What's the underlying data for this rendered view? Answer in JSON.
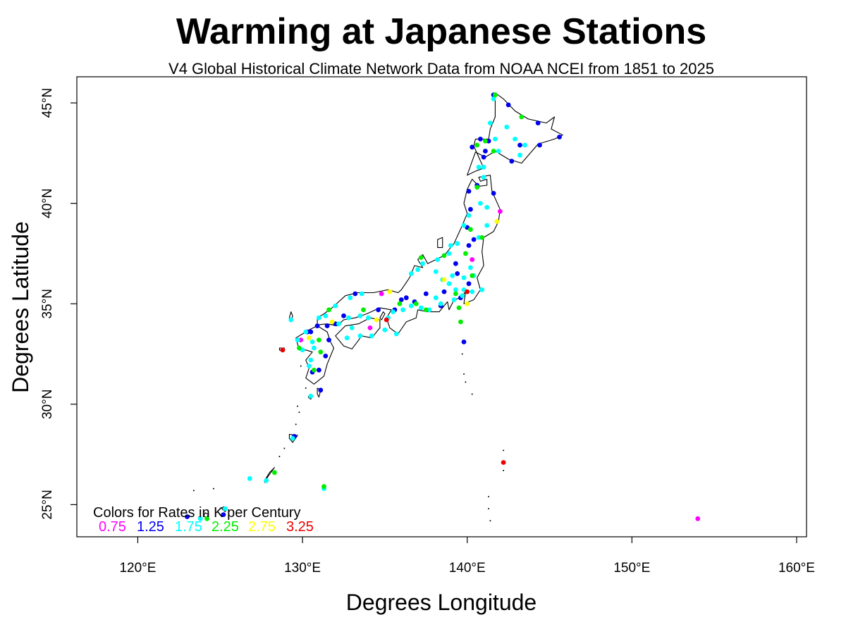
{
  "chart_data": {
    "type": "scatter",
    "title": "Warming at Japanese Stations",
    "subtitle": "V4 Global Historical Climate Network Data from NOAA NCEI from 1851 to 2025",
    "xlabel": "Degrees Longitude",
    "ylabel": "Degrees Latitude",
    "xlim": [
      116.3,
      160.6
    ],
    "ylim": [
      23.4,
      46.3
    ],
    "x_ticks": [
      120,
      130,
      140,
      150,
      160
    ],
    "x_tick_labels": [
      "120°E",
      "130°E",
      "140°E",
      "150°E",
      "160°E"
    ],
    "y_ticks": [
      25,
      30,
      35,
      40,
      45
    ],
    "y_tick_labels": [
      "25°N",
      "30°N",
      "35°N",
      "40°N",
      "45°N"
    ],
    "grid": false,
    "legend": {
      "title": "Colors for Rates in K per Century",
      "placement": "bottom-left",
      "entries": [
        {
          "label": "0.75",
          "color": "#ff00ff"
        },
        {
          "label": "1.25",
          "color": "#0000ee"
        },
        {
          "label": "1.75",
          "color": "#00ffff"
        },
        {
          "label": "2.25",
          "color": "#00ee00"
        },
        {
          "label": "2.75",
          "color": "#ffff00"
        },
        {
          "label": "3.25",
          "color": "#ee0000"
        }
      ]
    },
    "series": [
      {
        "name": "0.75",
        "color": "#ff00ff",
        "points": [
          [
            142.0,
            39.6
          ],
          [
            140.3,
            37.2
          ],
          [
            134.8,
            35.5
          ],
          [
            134.1,
            33.8
          ],
          [
            154.0,
            24.3
          ],
          [
            129.9,
            33.2
          ]
        ]
      },
      {
        "name": "1.25",
        "color": "#0000ee",
        "points": [
          [
            141.6,
            45.4
          ],
          [
            142.5,
            44.9
          ],
          [
            144.3,
            44.0
          ],
          [
            140.8,
            43.2
          ],
          [
            141.3,
            43.1
          ],
          [
            140.3,
            42.8
          ],
          [
            141.1,
            42.6
          ],
          [
            141.0,
            42.3
          ],
          [
            143.2,
            42.9
          ],
          [
            144.4,
            42.9
          ],
          [
            142.7,
            42.1
          ],
          [
            145.6,
            43.3
          ],
          [
            140.1,
            40.6
          ],
          [
            140.2,
            39.7
          ],
          [
            140.0,
            38.8
          ],
          [
            140.4,
            38.2
          ],
          [
            139.3,
            37.0
          ],
          [
            139.6,
            35.3
          ],
          [
            140.1,
            36.0
          ],
          [
            140.1,
            37.9
          ],
          [
            139.4,
            36.5
          ],
          [
            138.6,
            35.6
          ],
          [
            138.4,
            34.9
          ],
          [
            137.5,
            35.5
          ],
          [
            136.8,
            35.1
          ],
          [
            136.3,
            35.3
          ],
          [
            136.0,
            35.2
          ],
          [
            135.6,
            34.7
          ],
          [
            134.6,
            34.7
          ],
          [
            133.2,
            35.5
          ],
          [
            132.5,
            34.4
          ],
          [
            132.0,
            34.0
          ],
          [
            131.5,
            33.9
          ],
          [
            130.9,
            33.9
          ],
          [
            130.5,
            33.6
          ],
          [
            131.6,
            33.2
          ],
          [
            131.4,
            32.4
          ],
          [
            131.0,
            31.7
          ],
          [
            130.6,
            31.6
          ],
          [
            131.1,
            30.7
          ],
          [
            129.5,
            28.4
          ],
          [
            123.0,
            24.4
          ],
          [
            125.2,
            24.5
          ],
          [
            139.8,
            33.1
          ],
          [
            140.6,
            40.9
          ],
          [
            141.6,
            40.5
          ],
          [
            130.3,
            33.6
          ]
        ]
      },
      {
        "name": "1.75",
        "color": "#00ffff",
        "points": [
          [
            141.4,
            44.0
          ],
          [
            142.4,
            43.8
          ],
          [
            142.9,
            43.2
          ],
          [
            143.5,
            42.9
          ],
          [
            141.7,
            43.2
          ],
          [
            141.9,
            42.6
          ],
          [
            143.2,
            42.4
          ],
          [
            140.7,
            41.8
          ],
          [
            141.0,
            41.3
          ],
          [
            140.8,
            40.0
          ],
          [
            141.2,
            39.8
          ],
          [
            141.2,
            38.9
          ],
          [
            140.7,
            38.3
          ],
          [
            139.8,
            38.9
          ],
          [
            139.4,
            38.0
          ],
          [
            139.0,
            37.9
          ],
          [
            138.9,
            37.5
          ],
          [
            138.2,
            37.2
          ],
          [
            137.3,
            37.0
          ],
          [
            137.0,
            36.7
          ],
          [
            136.6,
            36.5
          ],
          [
            138.1,
            36.6
          ],
          [
            139.1,
            36.4
          ],
          [
            138.5,
            36.2
          ],
          [
            138.9,
            36.0
          ],
          [
            139.8,
            36.3
          ],
          [
            140.4,
            36.4
          ],
          [
            140.2,
            36.8
          ],
          [
            140.9,
            35.7
          ],
          [
            140.3,
            35.6
          ],
          [
            139.8,
            35.7
          ],
          [
            139.7,
            35.4
          ],
          [
            139.2,
            35.2
          ],
          [
            138.4,
            35.0
          ],
          [
            137.7,
            34.7
          ],
          [
            137.2,
            34.8
          ],
          [
            136.6,
            34.9
          ],
          [
            136.1,
            34.7
          ],
          [
            135.5,
            34.6
          ],
          [
            135.2,
            34.3
          ],
          [
            135.0,
            33.7
          ],
          [
            135.7,
            33.5
          ],
          [
            134.0,
            34.3
          ],
          [
            133.5,
            34.4
          ],
          [
            132.8,
            34.3
          ],
          [
            132.2,
            34.0
          ],
          [
            133.0,
            33.8
          ],
          [
            132.7,
            33.3
          ],
          [
            133.5,
            33.4
          ],
          [
            134.2,
            33.4
          ],
          [
            133.6,
            35.5
          ],
          [
            132.9,
            35.3
          ],
          [
            132.0,
            34.9
          ],
          [
            131.4,
            34.4
          ],
          [
            131.0,
            34.3
          ],
          [
            130.2,
            33.6
          ],
          [
            130.6,
            33.1
          ],
          [
            130.7,
            32.8
          ],
          [
            130.0,
            32.7
          ],
          [
            130.5,
            32.2
          ],
          [
            130.4,
            31.9
          ],
          [
            129.7,
            33.2
          ],
          [
            129.3,
            34.2
          ],
          [
            130.5,
            30.4
          ],
          [
            129.4,
            28.3
          ],
          [
            127.8,
            26.2
          ],
          [
            126.8,
            26.3
          ],
          [
            123.8,
            24.3
          ],
          [
            125.3,
            24.8
          ],
          [
            131.3,
            25.8
          ],
          [
            141.6,
            45.2
          ],
          [
            140.1,
            39.4
          ],
          [
            141.0,
            41.8
          ],
          [
            139.3,
            35.7
          ],
          [
            138.1,
            35.3
          ]
        ]
      },
      {
        "name": "2.25",
        "color": "#00ee00",
        "points": [
          [
            141.7,
            45.4
          ],
          [
            143.3,
            44.3
          ],
          [
            140.6,
            42.9
          ],
          [
            141.6,
            42.6
          ],
          [
            140.6,
            40.8
          ],
          [
            140.2,
            38.7
          ],
          [
            140.9,
            38.3
          ],
          [
            139.9,
            37.5
          ],
          [
            138.6,
            37.4
          ],
          [
            137.2,
            37.3
          ],
          [
            140.3,
            36.4
          ],
          [
            139.3,
            35.5
          ],
          [
            139.5,
            34.8
          ],
          [
            139.6,
            34.1
          ],
          [
            137.5,
            34.7
          ],
          [
            136.9,
            35.0
          ],
          [
            135.9,
            35.0
          ],
          [
            133.7,
            34.7
          ],
          [
            131.6,
            34.7
          ],
          [
            131.0,
            33.2
          ],
          [
            131.1,
            32.6
          ],
          [
            130.7,
            31.7
          ],
          [
            129.8,
            32.8
          ],
          [
            124.2,
            24.3
          ],
          [
            128.3,
            26.6
          ],
          [
            131.3,
            25.9
          ],
          [
            141.1,
            43.1
          ]
        ]
      },
      {
        "name": "2.75",
        "color": "#ffff00",
        "points": [
          [
            141.8,
            39.1
          ],
          [
            140.0,
            35.0
          ],
          [
            138.6,
            36.2
          ],
          [
            135.3,
            35.6
          ],
          [
            134.5,
            34.2
          ],
          [
            131.8,
            34.1
          ],
          [
            130.4,
            33.3
          ]
        ]
      },
      {
        "name": "3.25",
        "color": "#ee0000",
        "points": [
          [
            140.0,
            35.6
          ],
          [
            135.1,
            34.2
          ],
          [
            128.8,
            32.7
          ],
          [
            142.2,
            27.1
          ]
        ]
      }
    ]
  }
}
